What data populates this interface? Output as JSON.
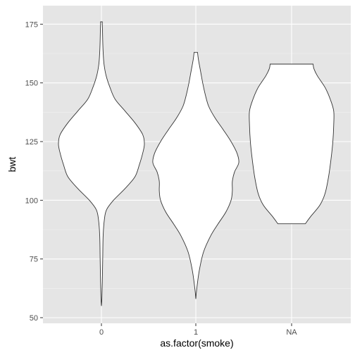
{
  "chart_data": {
    "type": "violin",
    "xlabel": "as.factor(smoke)",
    "ylabel": "bwt",
    "ylim": [
      50,
      176
    ],
    "y_ticks": [
      50,
      75,
      100,
      125,
      150,
      175
    ],
    "categories": [
      "0",
      "1",
      "NA"
    ],
    "grid": true,
    "background": "#e5e5e5",
    "fill_color": "#ffffff",
    "outline_color": "#333333",
    "violins": [
      {
        "category": "0",
        "min": 55,
        "max": 176,
        "profile": [
          [
            55,
            0.0
          ],
          [
            58,
            0.01
          ],
          [
            65,
            0.02
          ],
          [
            75,
            0.03
          ],
          [
            85,
            0.04
          ],
          [
            92,
            0.07
          ],
          [
            96,
            0.12
          ],
          [
            100,
            0.28
          ],
          [
            105,
            0.55
          ],
          [
            110,
            0.78
          ],
          [
            115,
            0.88
          ],
          [
            120,
            0.96
          ],
          [
            124,
            1.0
          ],
          [
            128,
            0.96
          ],
          [
            133,
            0.78
          ],
          [
            138,
            0.55
          ],
          [
            143,
            0.32
          ],
          [
            148,
            0.2
          ],
          [
            153,
            0.11
          ],
          [
            158,
            0.06
          ],
          [
            163,
            0.04
          ],
          [
            168,
            0.03
          ],
          [
            172,
            0.025
          ],
          [
            175,
            0.02
          ],
          [
            176,
            0.02
          ]
        ]
      },
      {
        "category": "1",
        "min": 58,
        "max": 163,
        "profile": [
          [
            58,
            0.0
          ],
          [
            62,
            0.02
          ],
          [
            70,
            0.08
          ],
          [
            78,
            0.18
          ],
          [
            85,
            0.35
          ],
          [
            90,
            0.52
          ],
          [
            95,
            0.7
          ],
          [
            100,
            0.82
          ],
          [
            104,
            0.85
          ],
          [
            108,
            0.85
          ],
          [
            112,
            0.9
          ],
          [
            116,
            1.0
          ],
          [
            120,
            0.96
          ],
          [
            125,
            0.82
          ],
          [
            130,
            0.64
          ],
          [
            135,
            0.45
          ],
          [
            140,
            0.3
          ],
          [
            145,
            0.22
          ],
          [
            150,
            0.16
          ],
          [
            155,
            0.11
          ],
          [
            160,
            0.06
          ],
          [
            163,
            0.04
          ]
        ]
      },
      {
        "category": "NA",
        "min": 90,
        "max": 158,
        "profile": [
          [
            90,
            0.32
          ],
          [
            93,
            0.44
          ],
          [
            98,
            0.66
          ],
          [
            103,
            0.78
          ],
          [
            110,
            0.86
          ],
          [
            118,
            0.92
          ],
          [
            125,
            0.96
          ],
          [
            132,
            0.98
          ],
          [
            138,
            0.98
          ],
          [
            143,
            0.9
          ],
          [
            148,
            0.78
          ],
          [
            153,
            0.6
          ],
          [
            156,
            0.52
          ],
          [
            158,
            0.5
          ]
        ]
      }
    ]
  }
}
